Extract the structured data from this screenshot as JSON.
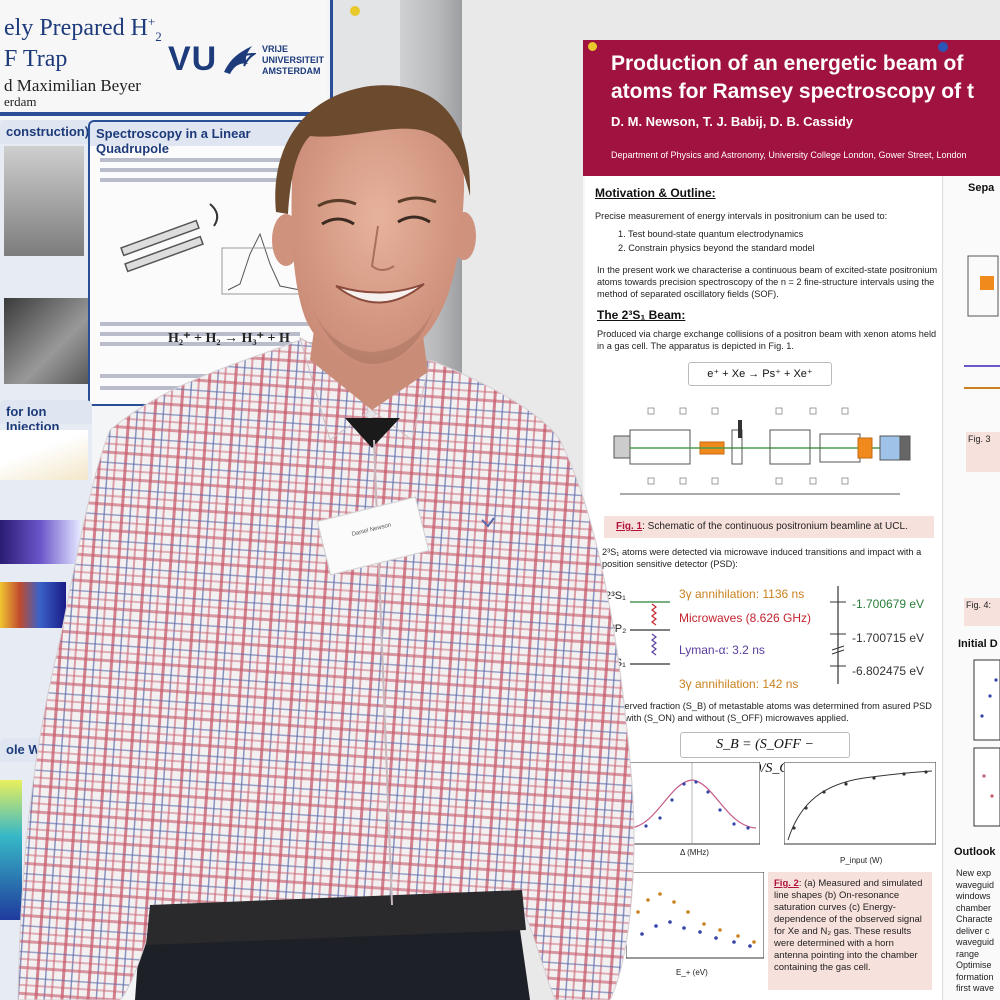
{
  "left_poster": {
    "title_line1": "ely Prepared H",
    "title_sup": "+",
    "title_sub": "2",
    "title_line2": "F Trap",
    "authors": "d Maximilian Beyer",
    "dept": "erdam",
    "logo_text": "VU",
    "logo_university": [
      "VRIJE",
      "UNIVERSITEIT",
      "AMSTERDAM"
    ],
    "col1_heading": "construction)",
    "col2_heading": "Spectroscopy in a Linear Quadrupole",
    "ion_heading": "for Ion Injection",
    "pole_heading": "ole Wir",
    "equation": "H₂⁺ + H₂ → H₃⁺ + H"
  },
  "right_poster": {
    "title_line1": "Production of an energetic beam of",
    "title_line2": "atoms for Ramsey spectroscopy of t",
    "authors": "D. M. Newson, T. J. Babij, D. B. Cassidy",
    "department": "Department of Physics and Astronomy, University College London, Gower Street, London",
    "motivation_title": "Motivation & Outline:",
    "motivation_text": "Precise measurement of energy intervals in positronium can be used to:",
    "list": [
      "1.  Test bound-state quantum electrodynamics",
      "2.  Constrain physics beyond the standard model"
    ],
    "present_text": "In the present work we characterise a continuous beam of excited-state positronium atoms towards precision spectroscopy of the n = 2 fine-structure intervals using the method of separated oscillatory fields (SOF).",
    "beam_title": "The 2³S₁ Beam:",
    "beam_text": "Produced via charge exchange collisions of a positron beam with xenon atoms held in a gas cell. The apparatus is depicted in Fig. 1.",
    "reaction": "e⁺ + Xe → Ps⁺ + Xe⁺",
    "fig1_label": "Fig. 1",
    "fig1_caption": ": Schematic of the continuous positronium beamline at UCL.",
    "detected_text": "2³S₁ atoms were detected via microwave induced transitions and impact with a position sensitive detector (PSD):",
    "levels": {
      "l1": "2³S₁",
      "l2": "2³P₂",
      "l3": "1³S₁",
      "annihilation_1": "3γ annihilation: 1136 ns",
      "microwaves": "Microwaves (8.626 GHz)",
      "lyman": "Lyman-α: 3.2 ns",
      "annihilation_2": "3γ annihilation: 142 ns",
      "energy_1": "-1.700679 eV",
      "energy_2": "-1.700715 eV",
      "energy_3": "-6.802475 eV"
    },
    "fraction_text": "e observed fraction (S_B) of metastable atoms was determined from asured PSD rates with (S_ON) and without (S_OFF) microwaves applied.",
    "sb_equation": "S_B = (S_OFF − S_ON)/S_OFF",
    "fig2_label": "Fig. 2",
    "fig2_caption": ": (a) Measured and simulated line shapes (b) On-resonance saturation curves (c) Energy-dependence of the observed signal for Xe and N₂ gas. These results were determined with a horn antenna pointing into the chamber containing the gas cell.",
    "plot_a_xlabel": "Δ (MHz)",
    "plot_b_xlabel": "P_input (W)",
    "plot_c_xlabel": "E_+ (eV)",
    "right_col": {
      "sep_title": "Sepa",
      "init_title": "Initial D",
      "outlook_title": "Outlook",
      "fig3": "Fig. 3",
      "fig4": "Fig. 4:",
      "outlook_text": "New exp waveguid windows chamber Characte deliver c waveguid range Optimise formation first wave"
    }
  },
  "badge_text": "Daniel Newson",
  "colors": {
    "ucl_header": "#a0123f",
    "vu_blue": "#2a4f96",
    "caption_bg": "#f7e1dc",
    "shirt_stripe_red": "#c65a6a",
    "shirt_stripe_blue": "#5b6aa8"
  }
}
